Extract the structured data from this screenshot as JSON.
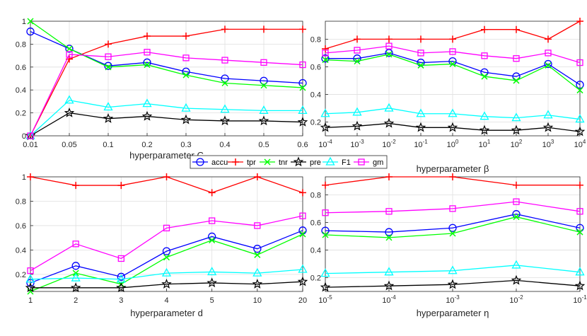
{
  "chart_data": [
    {
      "type": "line",
      "id": "C",
      "xlabel": "hyperparameter C",
      "categories": [
        "0.01",
        "0.05",
        "0.1",
        "0.2",
        "0.3",
        "0.4",
        "0.5",
        "0.6"
      ],
      "ylim": [
        0,
        1
      ],
      "yticks": [
        "0",
        "0.2",
        "0.4",
        "0.6",
        "0.8",
        "1"
      ],
      "ytick_values": [
        0,
        0.2,
        0.4,
        0.6,
        0.8,
        1
      ],
      "series": [
        {
          "name": "accu",
          "values": [
            0.91,
            0.76,
            0.61,
            0.64,
            0.56,
            0.5,
            0.48,
            0.46
          ]
        },
        {
          "name": "tpr",
          "values": [
            0,
            0.67,
            0.8,
            0.87,
            0.87,
            0.93,
            0.93,
            0.93
          ]
        },
        {
          "name": "tnr",
          "values": [
            1.0,
            0.76,
            0.6,
            0.62,
            0.53,
            0.46,
            0.44,
            0.42
          ]
        },
        {
          "name": "pre",
          "values": [
            0,
            0.2,
            0.15,
            0.17,
            0.14,
            0.13,
            0.13,
            0.12
          ]
        },
        {
          "name": "F1",
          "values": [
            0,
            0.31,
            0.25,
            0.28,
            0.24,
            0.23,
            0.22,
            0.22
          ]
        },
        {
          "name": "gm",
          "values": [
            0,
            0.71,
            0.69,
            0.73,
            0.68,
            0.66,
            0.64,
            0.62
          ]
        }
      ]
    },
    {
      "type": "line",
      "id": "beta",
      "xlabel": "hyperparameter β",
      "categories": [
        "10^-4",
        "10^-3",
        "10^-2",
        "10^-1",
        "10^0",
        "10^1",
        "10^2",
        "10^3",
        "10^4"
      ],
      "ylim": [
        0.1,
        0.93
      ],
      "yticks": [
        "0.2",
        "0.4",
        "0.6",
        "0.8"
      ],
      "ytick_values": [
        0.2,
        0.4,
        0.6,
        0.8
      ],
      "series": [
        {
          "name": "accu",
          "values": [
            0.66,
            0.66,
            0.7,
            0.63,
            0.64,
            0.56,
            0.53,
            0.62,
            0.47
          ]
        },
        {
          "name": "tpr",
          "values": [
            0.73,
            0.8,
            0.8,
            0.8,
            0.8,
            0.87,
            0.87,
            0.8,
            0.93
          ]
        },
        {
          "name": "tnr",
          "values": [
            0.65,
            0.64,
            0.69,
            0.61,
            0.62,
            0.53,
            0.5,
            0.61,
            0.43
          ]
        },
        {
          "name": "pre",
          "values": [
            0.16,
            0.17,
            0.19,
            0.16,
            0.16,
            0.14,
            0.14,
            0.16,
            0.13
          ]
        },
        {
          "name": "F1",
          "values": [
            0.26,
            0.27,
            0.3,
            0.26,
            0.26,
            0.24,
            0.23,
            0.25,
            0.22
          ]
        },
        {
          "name": "gm",
          "values": [
            0.7,
            0.72,
            0.75,
            0.7,
            0.71,
            0.68,
            0.66,
            0.7,
            0.63
          ]
        }
      ]
    },
    {
      "type": "line",
      "id": "d",
      "xlabel": "hyperparameter d",
      "categories": [
        "1",
        "2",
        "3",
        "4",
        "5",
        "10",
        "20"
      ],
      "ylim": [
        0.06,
        1.0
      ],
      "yticks": [
        "0.2",
        "0.4",
        "0.6",
        "0.8",
        "1"
      ],
      "ytick_values": [
        0.2,
        0.4,
        0.6,
        0.8,
        1
      ],
      "series": [
        {
          "name": "accu",
          "values": [
            0.13,
            0.27,
            0.18,
            0.39,
            0.51,
            0.41,
            0.56
          ]
        },
        {
          "name": "tpr",
          "values": [
            1.0,
            0.93,
            0.93,
            1.0,
            0.87,
            1.0,
            0.87
          ]
        },
        {
          "name": "tnr",
          "values": [
            0.06,
            0.21,
            0.12,
            0.34,
            0.48,
            0.36,
            0.53
          ]
        },
        {
          "name": "pre",
          "values": [
            0.09,
            0.09,
            0.09,
            0.12,
            0.13,
            0.12,
            0.14
          ]
        },
        {
          "name": "F1",
          "values": [
            0.16,
            0.17,
            0.16,
            0.21,
            0.22,
            0.21,
            0.24
          ]
        },
        {
          "name": "gm",
          "values": [
            0.23,
            0.45,
            0.33,
            0.58,
            0.64,
            0.6,
            0.68
          ]
        }
      ]
    },
    {
      "type": "line",
      "id": "eta",
      "xlabel": "hyperparameter η",
      "categories": [
        "10^-5",
        "10^-4",
        "10^-3",
        "10^-2",
        "10^-1"
      ],
      "ylim": [
        0.1,
        0.93
      ],
      "yticks": [
        "0.2",
        "0.4",
        "0.6",
        "0.8"
      ],
      "ytick_values": [
        0.2,
        0.4,
        0.6,
        0.8
      ],
      "series": [
        {
          "name": "accu",
          "values": [
            0.54,
            0.53,
            0.56,
            0.66,
            0.56
          ]
        },
        {
          "name": "tpr",
          "values": [
            0.87,
            0.93,
            0.93,
            0.87,
            0.87
          ]
        },
        {
          "name": "tnr",
          "values": [
            0.51,
            0.49,
            0.52,
            0.64,
            0.53
          ]
        },
        {
          "name": "pre",
          "values": [
            0.13,
            0.14,
            0.15,
            0.18,
            0.14
          ]
        },
        {
          "name": "F1",
          "values": [
            0.23,
            0.24,
            0.25,
            0.29,
            0.24
          ]
        },
        {
          "name": "gm",
          "values": [
            0.67,
            0.68,
            0.7,
            0.75,
            0.68
          ]
        }
      ]
    }
  ],
  "legend": [
    {
      "name": "accu",
      "color": "#0000ff",
      "marker": "circle"
    },
    {
      "name": "tpr",
      "color": "#ff0000",
      "marker": "plus"
    },
    {
      "name": "tnr",
      "color": "#00ff00",
      "marker": "x"
    },
    {
      "name": "pre",
      "color": "#000000",
      "marker": "star"
    },
    {
      "name": "F1",
      "color": "#00ffff",
      "marker": "triangle"
    },
    {
      "name": "gm",
      "color": "#ff00ff",
      "marker": "square"
    }
  ]
}
